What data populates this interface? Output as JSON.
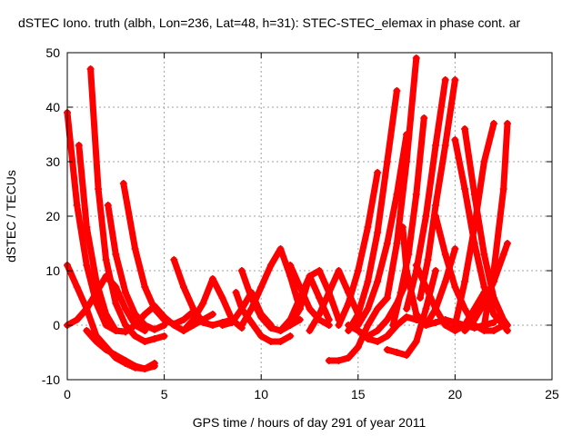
{
  "chart_data": {
    "type": "scatter",
    "title": "dSTEC Iono. truth (albh, Lon=236, Lat=48, h=31): STEC-STEC_elemax in phase cont. ar",
    "xlabel": "GPS time / hours of day 291 of year 2011",
    "ylabel": "dSTEC  / TECUs",
    "xlim": [
      0,
      25
    ],
    "ylim": [
      -10,
      50
    ],
    "xticks": [
      0,
      5,
      10,
      15,
      20,
      25
    ],
    "yticks": [
      -10,
      0,
      10,
      20,
      30,
      40,
      50
    ],
    "grid": true,
    "legend": "none",
    "color": "#ff0000",
    "series": [
      {
        "x": [
          0.0,
          0.5,
          1.0,
          1.5,
          2.0,
          2.5,
          3.0,
          3.5,
          4.0,
          4.5
        ],
        "y": [
          39,
          22,
          11,
          4,
          0,
          -1,
          -1.2,
          0,
          2,
          3.5
        ]
      },
      {
        "x": [
          0.6,
          1.0,
          1.5,
          2.0,
          2.5,
          3.0,
          3.5
        ],
        "y": [
          33,
          18,
          8,
          2,
          -1,
          -1.2,
          0
        ]
      },
      {
        "x": [
          1.2,
          1.6,
          2.0,
          2.5,
          3.0,
          3.5,
          4.0,
          4.5,
          5.0
        ],
        "y": [
          47,
          25,
          12,
          4,
          0,
          -2,
          -3,
          -2.5,
          -2
        ]
      },
      {
        "x": [
          2.1,
          2.5,
          3.0,
          3.5,
          4.0,
          4.5,
          5.0
        ],
        "y": [
          22,
          13,
          6,
          2,
          0,
          -0.8,
          0
        ]
      },
      {
        "x": [
          2.9,
          3.5,
          4.0,
          4.5,
          5.0,
          5.5,
          6.0,
          6.5
        ],
        "y": [
          26,
          14,
          7,
          3,
          1,
          0.2,
          1,
          2.5
        ]
      },
      {
        "x": [
          0.0,
          0.5,
          1.0,
          1.5,
          2.0,
          2.5,
          3.0,
          3.5,
          4.0,
          4.5
        ],
        "y": [
          11,
          7,
          3,
          -2,
          -4,
          -6,
          -7,
          -7.8,
          -8,
          -7.5
        ]
      },
      {
        "x": [
          0.0,
          0.5,
          1.0,
          1.5,
          2.0,
          2.5,
          3.0,
          3.5,
          4.0
        ],
        "y": [
          0,
          1,
          3,
          6,
          9,
          7,
          3,
          0,
          -1
        ]
      },
      {
        "x": [
          1.0,
          1.5,
          2.0,
          2.5,
          3.0,
          3.5,
          4.0,
          4.5
        ],
        "y": [
          -1,
          -3,
          -4.5,
          -5.5,
          -6.5,
          -7.5,
          -8,
          -7
        ]
      },
      {
        "x": [
          4.5,
          5.0,
          5.5,
          6.0,
          6.5,
          7.0,
          7.5
        ],
        "y": [
          3.5,
          1.5,
          0,
          -1,
          0,
          1,
          2
        ]
      },
      {
        "x": [
          5.5,
          6.0,
          6.5,
          7.0,
          7.5,
          8.0,
          8.5
        ],
        "y": [
          12,
          7,
          3,
          0.5,
          0,
          0.5,
          1
        ]
      },
      {
        "x": [
          6.0,
          6.5,
          7.0,
          7.5,
          8.0,
          8.5,
          9.0
        ],
        "y": [
          -1,
          1,
          4,
          8.5,
          5,
          1,
          -0.5
        ]
      },
      {
        "x": [
          8.0,
          8.5,
          9.0,
          9.5,
          10.0,
          10.5
        ],
        "y": [
          0,
          0.5,
          3,
          6,
          2,
          0
        ]
      },
      {
        "x": [
          8.7,
          9.0,
          9.5,
          10.0,
          10.5,
          11.0,
          11.5
        ],
        "y": [
          6,
          3,
          0.5,
          -2,
          -3,
          -3,
          -2
        ]
      },
      {
        "x": [
          9.0,
          9.5,
          10.0,
          10.5,
          11.0,
          11.5,
          12.0
        ],
        "y": [
          10,
          5,
          1.5,
          -0.5,
          -1,
          0,
          1
        ]
      },
      {
        "x": [
          9.0,
          9.5,
          10.0,
          10.5,
          11.0,
          11.5,
          12.0
        ],
        "y": [
          0,
          3,
          7,
          11,
          14,
          9,
          3
        ]
      },
      {
        "x": [
          11.0,
          11.5,
          12.0,
          12.5,
          13.0,
          13.5,
          14.0
        ],
        "y": [
          -1,
          1,
          5,
          9,
          10,
          6,
          1
        ]
      },
      {
        "x": [
          11.5,
          12.0,
          12.5,
          13.0,
          13.5
        ],
        "y": [
          11,
          7,
          3,
          1,
          0
        ]
      },
      {
        "x": [
          11.5,
          12.0,
          12.5,
          13.0,
          13.5
        ],
        "y": [
          0,
          3,
          9,
          5,
          1
        ]
      },
      {
        "x": [
          12.5,
          13.0,
          13.5,
          14.0,
          14.5,
          15.0
        ],
        "y": [
          -1,
          2,
          6,
          10,
          6,
          2
        ]
      },
      {
        "x": [
          13.5,
          14.0,
          14.5,
          15.0,
          15.5,
          16.0,
          16.5
        ],
        "y": [
          -6.5,
          -6.5,
          -6,
          -4,
          0,
          3,
          5
        ]
      },
      {
        "x": [
          14.0,
          14.5,
          15.0,
          15.5,
          16.0
        ],
        "y": [
          0,
          4,
          10,
          18,
          28
        ]
      },
      {
        "x": [
          14.5,
          15.0,
          15.5,
          16.0,
          16.5,
          17.0
        ],
        "y": [
          -1,
          2,
          8,
          17,
          30,
          43
        ]
      },
      {
        "x": [
          15.0,
          15.5,
          16.0,
          16.5,
          17.0,
          17.5
        ],
        "y": [
          0,
          3,
          8,
          15,
          24,
          35
        ]
      },
      {
        "x": [
          16.5,
          17.0,
          17.5,
          18.0,
          18.5,
          19.0
        ],
        "y": [
          -4.5,
          -5,
          -5.5,
          -3,
          3,
          10
        ]
      },
      {
        "x": [
          16.5,
          17.0,
          17.5,
          18.0
        ],
        "y": [
          5,
          15,
          30,
          49
        ]
      },
      {
        "x": [
          16.8,
          17.2,
          17.6,
          18.0,
          18.4
        ],
        "y": [
          0,
          6,
          13,
          24,
          38
        ]
      },
      {
        "x": [
          17.5,
          18.0,
          18.5,
          19.0,
          19.5
        ],
        "y": [
          3,
          10,
          20,
          33,
          45
        ]
      },
      {
        "x": [
          18.2,
          18.6,
          19.0,
          19.5,
          20.0
        ],
        "y": [
          5,
          12,
          22,
          33,
          45
        ]
      },
      {
        "x": [
          17.3,
          17.5,
          18.0,
          18.5,
          19.0,
          19.5,
          20.0
        ],
        "y": [
          18,
          10,
          2,
          0,
          3,
          8,
          14
        ]
      },
      {
        "x": [
          18.0,
          18.5,
          19.0,
          19.5,
          20.0,
          20.5,
          21.0,
          21.5
        ],
        "y": [
          11,
          7,
          3,
          0,
          -1,
          0,
          3,
          6
        ]
      },
      {
        "x": [
          19.0,
          19.5,
          20.0,
          20.5,
          21.0,
          21.5,
          22.0,
          22.5
        ],
        "y": [
          20,
          13,
          7,
          3,
          0,
          -1,
          -1,
          0
        ]
      },
      {
        "x": [
          20.0,
          20.5,
          21.0,
          21.5,
          22.0,
          22.5,
          22.7
        ],
        "y": [
          34,
          25,
          15,
          7,
          2,
          0,
          -1
        ]
      },
      {
        "x": [
          20.5,
          21.0,
          21.5,
          22.0,
          22.5,
          22.7
        ],
        "y": [
          36,
          24,
          13,
          5,
          1,
          0
        ]
      },
      {
        "x": [
          20.0,
          20.5,
          21.0,
          21.5,
          22.0
        ],
        "y": [
          0,
          8,
          18,
          30,
          37
        ]
      },
      {
        "x": [
          20.5,
          21.0,
          21.5,
          22.0,
          22.5,
          22.7
        ],
        "y": [
          -1,
          1,
          4,
          8,
          13,
          15
        ]
      },
      {
        "x": [
          21.5,
          22.0,
          22.5,
          22.7
        ],
        "y": [
          0,
          10,
          25,
          37
        ]
      },
      {
        "x": [
          14.5,
          15.0,
          15.5,
          16.0,
          16.5,
          17.0,
          17.5
        ],
        "y": [
          0,
          -1,
          -2,
          -1,
          1,
          4,
          8
        ]
      },
      {
        "x": [
          15.0,
          15.5,
          16.0,
          16.5,
          17.0,
          17.5,
          18.0,
          18.5
        ],
        "y": [
          -1,
          -2.5,
          -3,
          -2,
          0,
          1.5,
          1,
          0.5
        ]
      },
      {
        "x": [
          18.5,
          19.0,
          19.5,
          20.0,
          20.5,
          21.0,
          21.5,
          22.0
        ],
        "y": [
          0,
          0.5,
          1,
          0.5,
          0,
          -0.5,
          0,
          0.5
        ]
      }
    ]
  }
}
